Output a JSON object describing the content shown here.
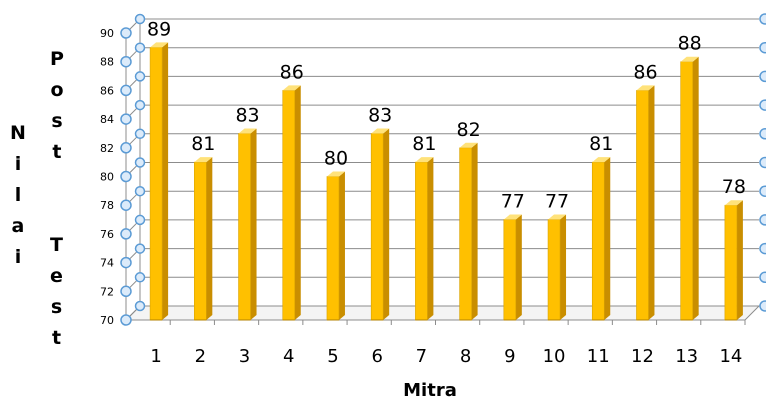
{
  "chart_data": {
    "type": "bar",
    "categories": [
      "1",
      "2",
      "3",
      "4",
      "5",
      "6",
      "7",
      "8",
      "9",
      "10",
      "11",
      "12",
      "13",
      "14"
    ],
    "values": [
      89,
      81,
      83,
      86,
      80,
      83,
      81,
      82,
      77,
      77,
      81,
      86,
      88,
      78
    ],
    "title": "",
    "xlabel": "Mitra",
    "ylabel": "Nilai Post Test",
    "ylabel_lines": [
      "Nilai",
      "Post",
      "Test"
    ],
    "ylim": [
      70,
      90
    ],
    "yticks": [
      "70",
      "72",
      "74",
      "76",
      "78",
      "80",
      "82",
      "84",
      "86",
      "88",
      "90"
    ],
    "grid": true,
    "legend": "none",
    "colors": {
      "bar_front": "#FFC000",
      "bar_side": "#C98E00",
      "bar_top": "#FFE27A",
      "grid": "#8C8C8C",
      "marker_fill": "#DCEBFA",
      "marker_stroke": "#5B9BD5"
    }
  }
}
